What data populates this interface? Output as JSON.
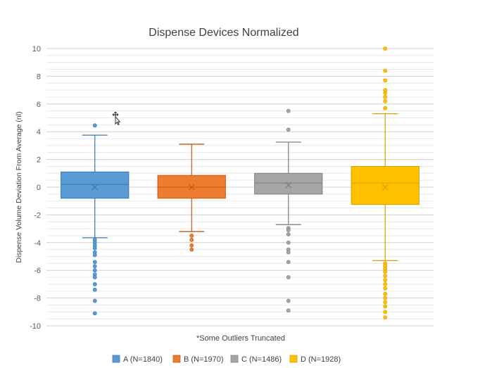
{
  "chart_data": {
    "type": "box",
    "title": "Dispense Devices Normalized",
    "xlabel": "*Some Outliers Truncated",
    "ylabel": "Dispense Volume Deviation From Average (nl)",
    "ylim": [
      -10,
      10
    ],
    "major_ticks": [
      -10,
      -8,
      -6,
      -4,
      -2,
      0,
      2,
      4,
      6,
      8,
      10
    ],
    "minor_step": 0.5,
    "grid": true,
    "legend_position": "bottom",
    "series": [
      {
        "name": "A (N=1840)",
        "color": "#5b9bd5",
        "stroke": "#3a76b0",
        "whisker_low": -3.65,
        "q1": -0.8,
        "median": 0.2,
        "q3": 1.1,
        "whisker_high": 3.75,
        "mean": 0.0,
        "outliers": [
          4.45,
          -3.8,
          -4.0,
          -4.2,
          -4.4,
          -4.7,
          -4.9,
          -5.4,
          -5.7,
          -6.0,
          -6.3,
          -6.5,
          -7.0,
          -7.4,
          -8.2,
          -9.1
        ]
      },
      {
        "name": "B (N=1970)",
        "color": "#ed7d31",
        "stroke": "#c55a11",
        "whisker_low": -3.2,
        "q1": -0.8,
        "median": 0.0,
        "q3": 0.85,
        "whisker_high": 3.1,
        "mean": 0.0,
        "outliers": [
          -3.5,
          -3.8,
          -4.2,
          -4.5
        ]
      },
      {
        "name": "C (N=1486)",
        "color": "#a5a5a5",
        "stroke": "#7f7f7f",
        "whisker_low": -2.7,
        "q1": -0.5,
        "median": 0.3,
        "q3": 1.0,
        "whisker_high": 3.25,
        "mean": 0.15,
        "outliers": [
          5.5,
          4.15,
          -2.95,
          -3.1,
          -3.4,
          -4.0,
          -4.5,
          -4.7,
          -5.4,
          -6.5,
          -8.2,
          -8.9
        ]
      },
      {
        "name": "D (N=1928)",
        "color": "#ffc000",
        "stroke": "#d6a100",
        "whisker_low": -5.3,
        "q1": -1.25,
        "median": 0.3,
        "q3": 1.5,
        "whisker_high": 5.3,
        "mean": 0.0,
        "outliers": [
          10.0,
          8.4,
          7.7,
          7.0,
          6.8,
          6.5,
          6.2,
          5.7,
          -5.5,
          -5.7,
          -5.9,
          -6.1,
          -6.4,
          -6.7,
          -7.0,
          -7.3,
          -7.7,
          -8.0,
          -8.3,
          -8.6,
          -9.0,
          -9.4
        ]
      }
    ]
  },
  "icons": {
    "cursor": "move-cursor-icon"
  }
}
